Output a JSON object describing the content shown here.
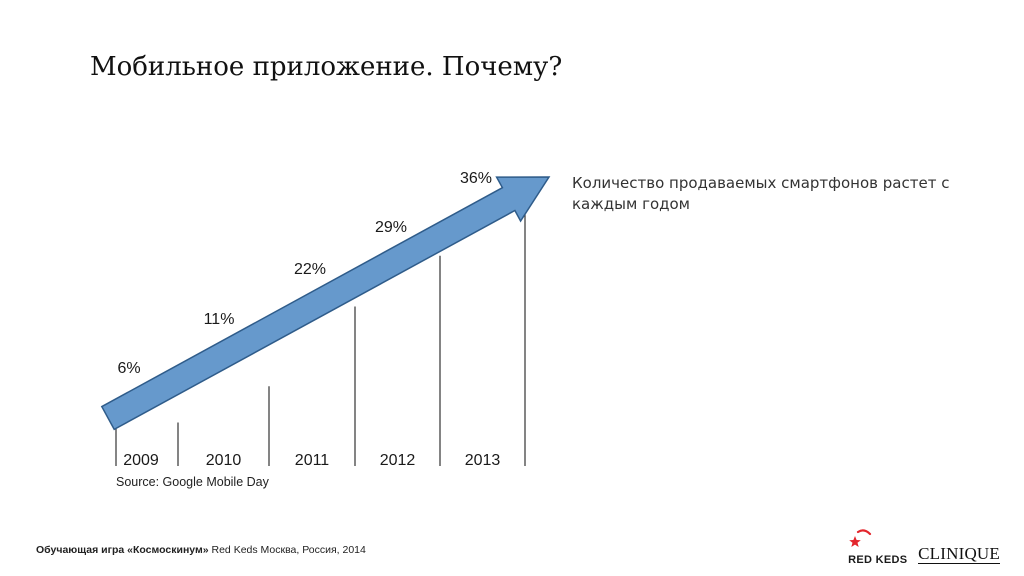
{
  "slide": {
    "title": "Мобильное приложение. Почему?",
    "description": "Количество продаваемых смартфонов растет с каждым годом",
    "source": "Source: Google Mobile Day"
  },
  "footer": {
    "game_name": "Обучающая игра «Космоскинум»",
    "rest": " Red Keds Москва, Россия, 2014"
  },
  "logos": {
    "red_keds": "RED KEDS",
    "clinique": "CLINIQUE"
  },
  "colors": {
    "arrow_fill": "#6699cc",
    "arrow_stroke": "#2f5c8a",
    "logo_red": "#e3262d"
  },
  "chart_data": {
    "type": "bar",
    "categories": [
      "2009",
      "2010",
      "2011",
      "2012",
      "2013"
    ],
    "values": [
      6,
      11,
      22,
      29,
      36
    ],
    "value_labels": [
      "6%",
      "11%",
      "22%",
      "29%",
      "36%"
    ],
    "title": "",
    "xlabel": "",
    "ylabel": "",
    "ylim": [
      0,
      36
    ],
    "grid": false,
    "legend": "none",
    "trend_arrow": true
  }
}
